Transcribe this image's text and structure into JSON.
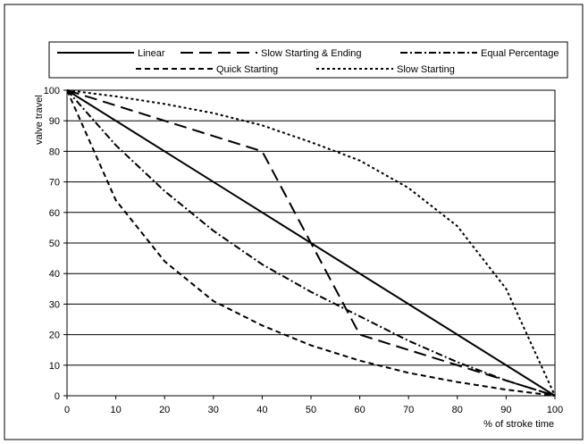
{
  "chart_data": {
    "type": "line",
    "title": "",
    "xlabel": "% of stroke time",
    "ylabel": "valve travel",
    "xlim": [
      0,
      100
    ],
    "ylim": [
      0,
      100
    ],
    "x_ticks": [
      0,
      10,
      20,
      30,
      40,
      50,
      60,
      70,
      80,
      90,
      100
    ],
    "y_ticks": [
      0,
      10,
      20,
      30,
      40,
      50,
      60,
      70,
      80,
      90,
      100
    ],
    "grid": "horizontal",
    "legend_position": "top",
    "series": [
      {
        "name": "Linear",
        "style": "solid",
        "x": [
          0,
          100
        ],
        "y": [
          100,
          0
        ]
      },
      {
        "name": "Slow Starting & Ending",
        "style": "long-dash",
        "x": [
          0,
          40,
          60,
          100
        ],
        "y": [
          100,
          80,
          20,
          0
        ]
      },
      {
        "name": "Equal Percentage",
        "style": "dash-dot",
        "x": [
          0,
          10,
          20,
          30,
          40,
          50,
          60,
          70,
          80,
          90,
          100
        ],
        "y": [
          100,
          82,
          67,
          54,
          43,
          34,
          26,
          18,
          11,
          5,
          0
        ]
      },
      {
        "name": "Quick Starting",
        "style": "dash",
        "x": [
          0,
          10,
          20,
          30,
          40,
          50,
          60,
          70,
          80,
          90,
          100
        ],
        "y": [
          100,
          64,
          44,
          31,
          23,
          16.5,
          11.5,
          7.5,
          4.5,
          2,
          0
        ]
      },
      {
        "name": "Slow Starting",
        "style": "dot",
        "x": [
          0,
          10,
          20,
          30,
          40,
          50,
          60,
          70,
          80,
          90,
          100
        ],
        "y": [
          100,
          98,
          95.5,
          92.5,
          88.5,
          83,
          77,
          68,
          55.5,
          35,
          0
        ]
      }
    ],
    "line_color": "#000000"
  }
}
